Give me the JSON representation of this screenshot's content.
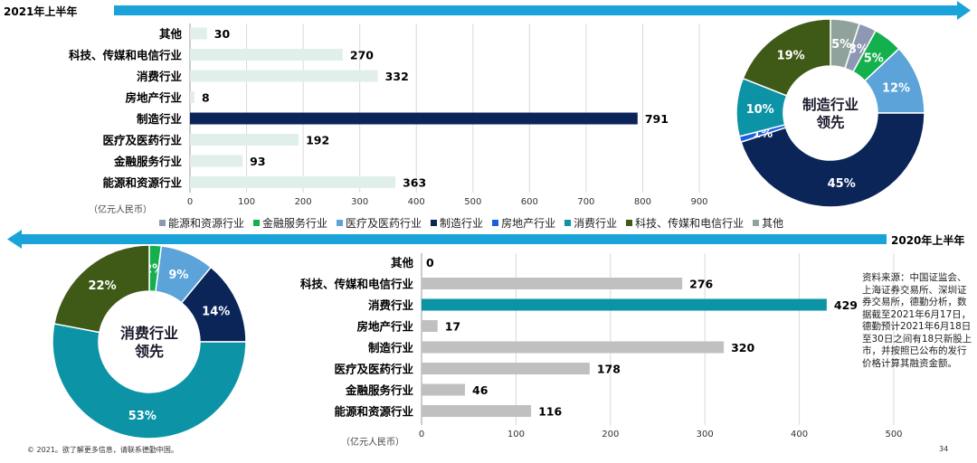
{
  "chart_data": [
    {
      "type": "bar",
      "title": "2021年上半年",
      "unit_label": "（亿元人民币）",
      "categories": [
        "其他",
        "科技、传媒和电信行业",
        "消费行业",
        "房地产行业",
        "制造行业",
        "医疗及医药行业",
        "金融服务行业",
        "能源和资源行业"
      ],
      "values": [
        30,
        270,
        332,
        8,
        791,
        192,
        93,
        363
      ],
      "highlight": "制造行业",
      "xlim": [
        0,
        900
      ],
      "xticks": [
        0,
        100,
        200,
        300,
        400,
        500,
        600,
        700,
        800,
        900
      ],
      "colors": {
        "normal": "#e1efea",
        "highlight": "#0b2559"
      }
    },
    {
      "type": "pie",
      "center_label": [
        "制造行业",
        "领先"
      ],
      "slices": [
        {
          "name": "其他",
          "value": 5,
          "label": "5%",
          "color": "#8fa39c"
        },
        {
          "name": "能源和资源行业",
          "value": 3,
          "label": "3%",
          "color": "#8f98b3"
        },
        {
          "name": "金融服务行业",
          "value": 5,
          "label": "5%",
          "color": "#14b04e"
        },
        {
          "name": "医疗及医药行业",
          "value": 12,
          "label": "12%",
          "color": "#5ba3d8"
        },
        {
          "name": "制造行业",
          "value": 45,
          "label": "45%",
          "color": "#0b2559"
        },
        {
          "name": "房地产行业",
          "value": 1,
          "label": "1%",
          "color": "#1a5fe0"
        },
        {
          "name": "消费行业",
          "value": 10,
          "label": "10%",
          "color": "#0d93a6"
        },
        {
          "name": "科技、传媒和电信行业",
          "value": 19,
          "label": "19%",
          "color": "#3f5a17"
        }
      ]
    },
    {
      "type": "pie",
      "center_label": [
        "消费行业",
        "领先"
      ],
      "slices": [
        {
          "name": "金融服务行业",
          "value": 2,
          "label": "2%",
          "color": "#14b04e"
        },
        {
          "name": "医疗及医药行业",
          "value": 9,
          "label": "9%",
          "color": "#5ba3d8"
        },
        {
          "name": "制造行业",
          "value": 14,
          "label": "14%",
          "color": "#0b2559"
        },
        {
          "name": "消费行业",
          "value": 53,
          "label": "53%",
          "color": "#0d93a6"
        },
        {
          "name": "科技、传媒和电信行业",
          "value": 22,
          "label": "22%",
          "color": "#3f5a17"
        }
      ]
    },
    {
      "type": "bar",
      "title": "2020年上半年",
      "unit_label": "（亿元人民币）",
      "categories": [
        "其他",
        "科技、传媒和电信行业",
        "消费行业",
        "房地产行业",
        "制造行业",
        "医疗及医药行业",
        "金融服务行业",
        "能源和资源行业"
      ],
      "values": [
        0,
        276,
        429,
        17,
        320,
        178,
        46,
        116
      ],
      "highlight": "消费行业",
      "xlim": [
        0,
        500
      ],
      "xticks": [
        0,
        100,
        200,
        300,
        400,
        500
      ],
      "colors": {
        "normal": "#c0c0c0",
        "highlight": "#0d93a6"
      }
    }
  ],
  "legend": [
    {
      "label": "能源和资源行业",
      "color": "#8f98b3"
    },
    {
      "label": "金融服务行业",
      "color": "#14b04e"
    },
    {
      "label": "医疗及医药行业",
      "color": "#5ba3d8"
    },
    {
      "label": "制造行业",
      "color": "#0b2559"
    },
    {
      "label": "房地产行业",
      "color": "#1a5fe0"
    },
    {
      "label": "消费行业",
      "color": "#0d93a6"
    },
    {
      "label": "科技、传媒和电信行业",
      "color": "#3f5a17"
    },
    {
      "label": "其他",
      "color": "#8fa39c"
    }
  ],
  "source_note": "资料来源：中国证监会、上海证券交易所、深圳证券交易所，德勤分析，数据截至2021年6月17日，德勤预计2021年6月18日至30日之间有18只新股上市，并按照已公布的发行价格计算其融资金额。",
  "footer": "© 2021。欲了解更多信息，请联系德勤中国。",
  "page_number": "34",
  "arrow_color": "#1aa3d9"
}
